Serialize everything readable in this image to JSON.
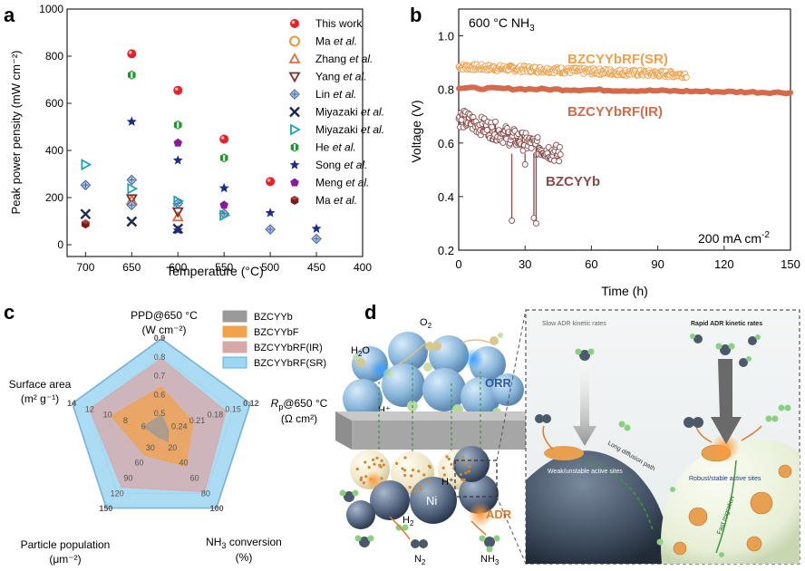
{
  "panel_labels": {
    "a": "a",
    "b": "b",
    "c": "c",
    "d": "d"
  },
  "chart_data": [
    {
      "id": "panel-a",
      "type": "scatter",
      "xlabel": "Temperature (°C)",
      "ylabel": "Peak power pensity (mW cm⁻²)",
      "xlim": [
        720,
        400
      ],
      "ylim": [
        -50,
        1000
      ],
      "xticks": [
        700,
        650,
        600,
        550,
        500,
        450,
        400
      ],
      "yticks": [
        0,
        200,
        400,
        600,
        800,
        1000
      ],
      "legend_position": "top-right",
      "series": [
        {
          "name": "This work",
          "italic": "",
          "marker": "circle-filled",
          "color": "#e8202a",
          "points": [
            [
              650,
              810
            ],
            [
              600,
              655
            ],
            [
              550,
              448
            ],
            [
              500,
              268
            ]
          ]
        },
        {
          "name": "Ma ",
          "italic": "et al.",
          "marker": "circle-open",
          "color": "#e8962d",
          "points": []
        },
        {
          "name": "Zhang ",
          "italic": "et al.",
          "marker": "triangle-up",
          "color": "#e06a3c",
          "points": [
            [
              650,
              188
            ],
            [
              600,
              118
            ]
          ]
        },
        {
          "name": "Yang ",
          "italic": "et al.",
          "marker": "triangle-down",
          "color": "#7a2e2e",
          "points": [
            [
              650,
              195
            ],
            [
              600,
              140
            ]
          ]
        },
        {
          "name": "Lin ",
          "italic": "et al.",
          "marker": "diamond-plus",
          "color": "#4a6aa8",
          "points": [
            [
              700,
              253
            ],
            [
              650,
              275
            ],
            [
              650,
              168
            ],
            [
              600,
              175
            ],
            [
              550,
              132
            ],
            [
              500,
              65
            ],
            [
              450,
              25
            ]
          ]
        },
        {
          "name": "Miyazaki ",
          "italic": "et al.",
          "marker": "x",
          "color": "#1b2a4a",
          "points": [
            [
              700,
              130
            ],
            [
              650,
              98
            ],
            [
              600,
              68
            ]
          ]
        },
        {
          "name": "Miyazaki ",
          "italic": "et al.",
          "marker": "triangle-right",
          "color": "#1aa3b0",
          "points": [
            [
              700,
              340
            ],
            [
              650,
              238
            ],
            [
              600,
              185
            ],
            [
              550,
              125
            ]
          ]
        },
        {
          "name": "He ",
          "italic": "et al.",
          "marker": "hexagon-bar",
          "color": "#1a9a2a",
          "points": [
            [
              650,
              720
            ],
            [
              600,
              508
            ],
            [
              550,
              368
            ]
          ]
        },
        {
          "name": "Song ",
          "italic": "et al.",
          "marker": "star",
          "color": "#1c2a8a",
          "points": [
            [
              650,
              522
            ],
            [
              600,
              358
            ],
            [
              550,
              240
            ],
            [
              500,
              135
            ],
            [
              450,
              68
            ],
            [
              600,
              62
            ]
          ]
        },
        {
          "name": "Meng ",
          "italic": "et al.",
          "marker": "pentagon",
          "color": "#8a1a9a",
          "points": [
            [
              600,
              432
            ],
            [
              550,
              168
            ]
          ]
        },
        {
          "name": "Ma ",
          "italic": "et al.",
          "marker": "hexagon-dark",
          "color": "#7a1a1a",
          "points": [
            [
              700,
              88
            ]
          ]
        }
      ]
    },
    {
      "id": "panel-b",
      "type": "line",
      "xlabel": "Time (h)",
      "ylabel": "Voltage (V)",
      "xlim": [
        0,
        150
      ],
      "ylim": [
        0.2,
        1.1
      ],
      "xticks": [
        0,
        30,
        60,
        90,
        120,
        150
      ],
      "yticks": [
        0.2,
        0.4,
        0.6,
        0.8,
        1.0
      ],
      "condition_label": "600 °C  NH",
      "condition_sub": "3",
      "current_label": "200 mA cm",
      "current_sup": "-2",
      "series": [
        {
          "name": "BZCYYbRF(SR)",
          "color": "#f0a04a",
          "start": 0,
          "end": 103,
          "v_start": 0.885,
          "v_end": 0.855,
          "noise": 0.012,
          "style": "circles"
        },
        {
          "name": "BZCYYbRF(IR)",
          "color": "#d46a4a",
          "start": 0,
          "end": 150,
          "v_start": 0.805,
          "v_end": 0.788,
          "noise": 0.004,
          "style": "thick"
        },
        {
          "name": "BZCYYb",
          "color": "#8a4a4a",
          "start": 0,
          "end": 46,
          "v_start": 0.695,
          "v_end": 0.555,
          "noise": 0.035,
          "style": "circles-spikes",
          "spikes": [
            [
              24,
              0.31
            ],
            [
              34,
              0.32
            ],
            [
              35,
              0.3
            ],
            [
              30,
              0.52
            ]
          ]
        }
      ]
    },
    {
      "id": "panel-c",
      "type": "radar",
      "axes": [
        {
          "label": "PPD@650 °C",
          "unit": "(W cm⁻²)",
          "ticks": [
            "0.9",
            "0.8",
            "0.7",
            "0.6",
            "0.5"
          ]
        },
        {
          "label": "R",
          "label_sub": "p",
          "label_rest": "@650 °C",
          "unit": "(Ω cm²)",
          "ticks": [
            "0.12",
            "0.15",
            "0.18",
            "0.21",
            "0.24"
          ]
        },
        {
          "label": "NH",
          "label_sub": "3",
          "label_rest": " conversion",
          "unit": "(%)",
          "ticks": [
            "100",
            "80",
            "60",
            "40",
            "20"
          ]
        },
        {
          "label": "Particle population",
          "unit": "(μm⁻²)",
          "ticks": [
            "150",
            "120",
            "90",
            "60",
            "30"
          ]
        },
        {
          "label": "Surface area",
          "unit": "(m² g⁻¹)",
          "ticks": [
            "14",
            "12",
            "10",
            "8",
            "6"
          ]
        }
      ],
      "series": [
        {
          "name": "BZCYYb",
          "color": "#9a9a9a",
          "values": [
            0.18,
            0.08,
            0.12,
            0.06,
            0.2
          ]
        },
        {
          "name": "BZCYYbF",
          "color": "#f2a24a",
          "values": [
            0.48,
            0.35,
            0.44,
            0.3,
            0.56
          ]
        },
        {
          "name": "BZCYYbRF(IR)",
          "color": "#d8a8a8",
          "values": [
            0.78,
            0.72,
            0.78,
            0.72,
            0.8
          ]
        },
        {
          "name": "BZCYYbRF(SR)",
          "color": "#9ed6f2",
          "values": [
            0.99,
            0.99,
            0.99,
            0.99,
            0.99
          ]
        }
      ]
    }
  ],
  "schematic": {
    "labels": {
      "o2": "O",
      "o2_sub": "2",
      "h2o": "H",
      "h2o_sub": "2",
      "h2o_rest": "O",
      "orr": "ORR",
      "hplus1": "H⁺",
      "hplus2": "H⁺",
      "ni": "Ni",
      "adr": "ADR",
      "h2": "H",
      "h2_sub": "2",
      "n2": "N",
      "n2_sub": "2",
      "nh3": "NH",
      "nh3_sub": "3"
    },
    "zoom": {
      "slow_title": "Slow ADR kinetic rates",
      "rapid_title": "Rapid ADR kinetic rates",
      "long_path": "Long diffusion path",
      "weak_sites": "Weak/unstable active sites",
      "robust_sites": "Robust/stable active sites",
      "fast_migration": "Fast migration"
    }
  }
}
